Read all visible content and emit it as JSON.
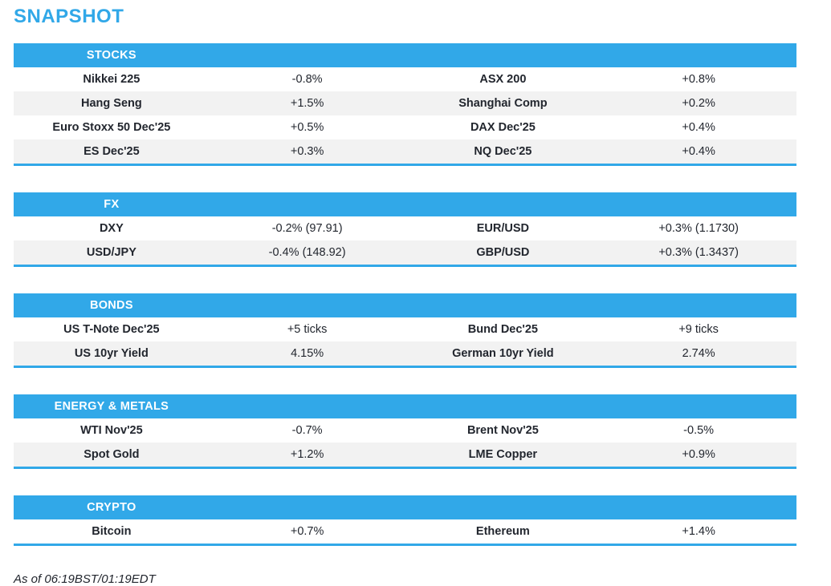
{
  "page": {
    "title": "SNAPSHOT",
    "footer": "As of 06:19BST/01:19EDT"
  },
  "colors": {
    "accent": "#31a8e8",
    "stripe": "#f2f2f2",
    "text": "#22262e",
    "header_text": "#ffffff"
  },
  "sections": [
    {
      "title": "STOCKS",
      "rows": [
        {
          "l1": "Nikkei 225",
          "v1": "-0.8%",
          "l2": "ASX 200",
          "v2": "+0.8%"
        },
        {
          "l1": "Hang Seng",
          "v1": "+1.5%",
          "l2": "Shanghai Comp",
          "v2": "+0.2%"
        },
        {
          "l1": "Euro Stoxx 50 Dec'25",
          "v1": "+0.5%",
          "l2": "DAX Dec'25",
          "v2": "+0.4%"
        },
        {
          "l1": "ES Dec'25",
          "v1": "+0.3%",
          "l2": "NQ Dec'25",
          "v2": "+0.4%"
        }
      ]
    },
    {
      "title": "FX",
      "rows": [
        {
          "l1": "DXY",
          "v1": "-0.2% (97.91)",
          "l2": "EUR/USD",
          "v2": "+0.3% (1.1730)"
        },
        {
          "l1": "USD/JPY",
          "v1": "-0.4% (148.92)",
          "l2": "GBP/USD",
          "v2": "+0.3% (1.3437)"
        }
      ]
    },
    {
      "title": "BONDS",
      "rows": [
        {
          "l1": "US T-Note Dec'25",
          "v1": "+5 ticks",
          "l2": "Bund Dec'25",
          "v2": "+9 ticks"
        },
        {
          "l1": "US 10yr Yield",
          "v1": "4.15%",
          "l2": "German 10yr Yield",
          "v2": "2.74%"
        }
      ]
    },
    {
      "title": "ENERGY & METALS",
      "rows": [
        {
          "l1": "WTI Nov'25",
          "v1": "-0.7%",
          "l2": "Brent Nov'25",
          "v2": "-0.5%"
        },
        {
          "l1": "Spot Gold",
          "v1": "+1.2%",
          "l2": "LME Copper",
          "v2": "+0.9%"
        }
      ]
    },
    {
      "title": "CRYPTO",
      "rows": [
        {
          "l1": "Bitcoin",
          "v1": "+0.7%",
          "l2": "Ethereum",
          "v2": "+1.4%"
        }
      ]
    }
  ]
}
